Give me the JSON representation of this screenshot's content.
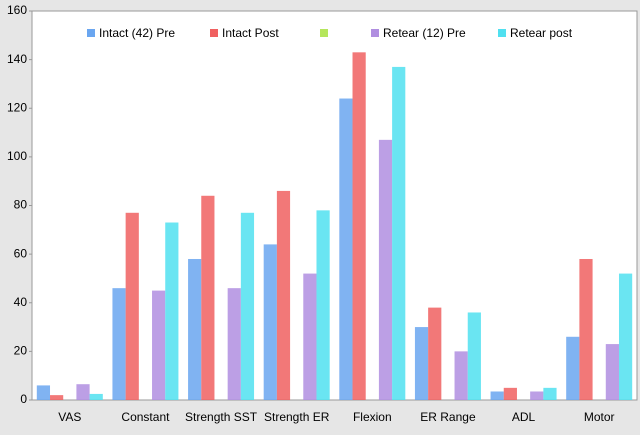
{
  "chart_data": {
    "type": "bar",
    "categories": [
      "VAS",
      "Constant",
      "Strength  SST",
      "Strength ER",
      "Flexion",
      "ER Range",
      "ADL",
      "Motor"
    ],
    "series": [
      {
        "name": "Intact (42) Pre",
        "color": "#6aa6f0",
        "values": [
          6,
          46,
          58,
          64,
          124,
          30,
          3.5,
          26
        ]
      },
      {
        "name": "Intact Post",
        "color": "#f06060",
        "values": [
          2,
          77,
          84,
          86,
          143,
          38,
          5,
          58
        ]
      },
      {
        "color": "#b5e65c",
        "values": [
          null,
          null,
          null,
          null,
          null,
          null,
          null,
          null
        ]
      },
      {
        "name": "Retear (12) Pre",
        "color": "#b08ee0",
        "values": [
          6.5,
          45,
          46,
          52,
          107,
          20,
          3.5,
          23
        ]
      },
      {
        "name": "Retear post",
        "color": "#50e0f0",
        "values": [
          2.5,
          73,
          77,
          78,
          137,
          36,
          5,
          52
        ]
      }
    ],
    "ylim": [
      0,
      160
    ],
    "yticks": [
      0,
      20,
      40,
      60,
      80,
      100,
      120,
      140,
      160
    ],
    "grid": false,
    "legend": "top"
  }
}
